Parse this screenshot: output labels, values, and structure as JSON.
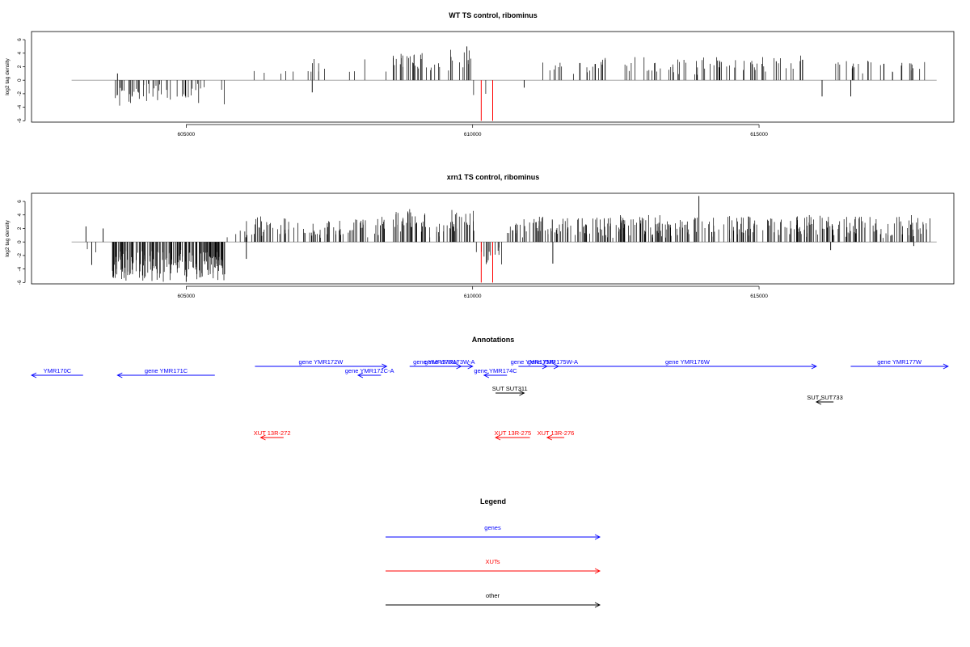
{
  "chart_data": [
    {
      "type": "bar",
      "title": "WT TS control, ribominus",
      "ylabel": "log2 tag density",
      "xlim": [
        602300,
        618400
      ],
      "ylim": [
        -6.2,
        7.2
      ],
      "yticks": [
        -6,
        -4,
        -2,
        0,
        2,
        4,
        6
      ],
      "xticks": [
        605000,
        610000,
        615000
      ],
      "baseline_from": 603000,
      "baseline_to": 618100,
      "seed": 11,
      "segments": [
        {
          "from": 603700,
          "to": 605700,
          "density": 2.4,
          "min": -3.5,
          "max": -0.5,
          "jitter": 0.6
        },
        {
          "from": 606100,
          "to": 607100,
          "density": 0.45,
          "min": 0.6,
          "max": 1.6,
          "jitter": 0.3
        },
        {
          "from": 607100,
          "to": 608500,
          "density": 0.8,
          "min": 1.0,
          "max": 3.0,
          "jitter": 0.5
        },
        {
          "from": 608600,
          "to": 609150,
          "density": 4.0,
          "min": 1.5,
          "max": 4.2,
          "jitter": 0.6
        },
        {
          "from": 609150,
          "to": 609600,
          "density": 1.6,
          "min": 0.8,
          "max": 2.6,
          "jitter": 0.5
        },
        {
          "from": 609600,
          "to": 610000,
          "density": 2.8,
          "min": 1.8,
          "max": 4.5,
          "jitter": 0.6
        },
        {
          "from": 610000,
          "to": 610300,
          "density": 0.5,
          "min": -2.5,
          "max": -0.5,
          "jitter": 0.4
        },
        {
          "from": 611200,
          "to": 612000,
          "density": 1.4,
          "min": 1.0,
          "max": 3.0,
          "jitter": 0.5
        },
        {
          "from": 612000,
          "to": 615800,
          "density": 2.0,
          "min": 0.8,
          "max": 3.4,
          "jitter": 0.6
        },
        {
          "from": 616300,
          "to": 618000,
          "density": 1.6,
          "min": 0.8,
          "max": 3.0,
          "jitter": 0.5
        }
      ],
      "points": [
        {
          "x": 603800,
          "y": 1.0
        },
        {
          "x": 607200,
          "y": -1.8
        },
        {
          "x": 609900,
          "y": 5.0
        },
        {
          "x": 610900,
          "y": -1.1
        },
        {
          "x": 616100,
          "y": -2.4
        },
        {
          "x": 616600,
          "y": -2.4
        },
        {
          "x": 615300,
          "y": 2.8
        }
      ],
      "highlights": [
        {
          "x": 610150,
          "y": -6.0,
          "color": "#ff0000"
        },
        {
          "x": 610350,
          "y": -6.0,
          "color": "#ff0000"
        }
      ]
    },
    {
      "type": "bar",
      "title": "xrn1 TS control, ribominus",
      "ylabel": "log2 tag density",
      "xlim": [
        602300,
        618400
      ],
      "ylim": [
        -6.2,
        7.2
      ],
      "yticks": [
        -6,
        -4,
        -2,
        0,
        2,
        4,
        6
      ],
      "xticks": [
        605000,
        610000,
        615000
      ],
      "baseline_from": 603000,
      "baseline_to": 618100,
      "seed": 29,
      "segments": [
        {
          "from": 603200,
          "to": 603500,
          "density": 0.6,
          "min": -2.6,
          "max": -1.0,
          "jitter": 0.4
        },
        {
          "from": 603700,
          "to": 605700,
          "density": 9.0,
          "min": -5.5,
          "max": -1.5,
          "jitter": 0.9
        },
        {
          "from": 605700,
          "to": 606000,
          "density": 1.0,
          "min": 0.5,
          "max": 2.0,
          "jitter": 0.4
        },
        {
          "from": 606000,
          "to": 608600,
          "density": 3.5,
          "min": 0.8,
          "max": 3.6,
          "jitter": 0.7
        },
        {
          "from": 608600,
          "to": 609200,
          "density": 6.0,
          "min": 1.5,
          "max": 4.8,
          "jitter": 0.7
        },
        {
          "from": 609200,
          "to": 609600,
          "density": 2.5,
          "min": 0.8,
          "max": 3.0,
          "jitter": 0.6
        },
        {
          "from": 609600,
          "to": 610050,
          "density": 5.0,
          "min": 1.8,
          "max": 5.0,
          "jitter": 0.7
        },
        {
          "from": 610050,
          "to": 610550,
          "density": 2.5,
          "min": -3.2,
          "max": -0.8,
          "jitter": 0.6
        },
        {
          "from": 610550,
          "to": 618000,
          "density": 4.5,
          "min": 0.8,
          "max": 3.8,
          "jitter": 0.8
        }
      ],
      "points": [
        {
          "x": 603250,
          "y": 2.3
        },
        {
          "x": 603550,
          "y": 2.0
        },
        {
          "x": 603350,
          "y": -3.4
        },
        {
          "x": 606050,
          "y": -2.5
        },
        {
          "x": 611400,
          "y": -3.2
        },
        {
          "x": 613950,
          "y": 6.8
        },
        {
          "x": 616250,
          "y": -1.2
        },
        {
          "x": 617700,
          "y": -0.6
        },
        {
          "x": 605000,
          "y": -5.9
        }
      ],
      "highlights": [
        {
          "x": 610150,
          "y": -6.0,
          "color": "#ff0000"
        },
        {
          "x": 610350,
          "y": -6.0,
          "color": "#ff0000"
        }
      ]
    }
  ],
  "annotations": {
    "title": "Annotations",
    "xlim": [
      602300,
      618400
    ],
    "features": [
      {
        "label": "YMR170C",
        "start": 602300,
        "end": 603200,
        "row": 0,
        "strand": "-",
        "color": "#0000ff"
      },
      {
        "label": "gene YMR171C",
        "start": 603800,
        "end": 605500,
        "row": 0,
        "strand": "-",
        "color": "#0000ff"
      },
      {
        "label": "gene YMR172W",
        "start": 606200,
        "end": 608500,
        "row": -1,
        "strand": "+",
        "color": "#0000ff"
      },
      {
        "label": "gene YMR172C-A",
        "start": 608000,
        "end": 608400,
        "row": 0,
        "strand": "-",
        "color": "#0000ff"
      },
      {
        "label": "gene YMR173W",
        "start": 608900,
        "end": 609800,
        "row": -1,
        "strand": "+",
        "color": "#0000ff"
      },
      {
        "label": "gene YMR173W-A",
        "start": 609200,
        "end": 610000,
        "row": -1,
        "strand": "+",
        "color": "#0000ff"
      },
      {
        "label": "gene YMR174C",
        "start": 610200,
        "end": 610600,
        "row": 0,
        "strand": "-",
        "color": "#0000ff"
      },
      {
        "label": "gene YMR175W",
        "start": 610800,
        "end": 611300,
        "row": -1,
        "strand": "+",
        "color": "#0000ff"
      },
      {
        "label": "gene YMR175W-A",
        "start": 611300,
        "end": 611500,
        "row": -1,
        "strand": "+",
        "color": "#0000ff"
      },
      {
        "label": "gene YMR176W",
        "start": 611500,
        "end": 616000,
        "row": -1,
        "strand": "+",
        "color": "#0000ff"
      },
      {
        "label": "gene YMR177W",
        "start": 616600,
        "end": 618300,
        "row": -1,
        "strand": "+",
        "color": "#0000ff"
      },
      {
        "label": "SUT SUT311",
        "start": 610400,
        "end": 610900,
        "row": 2,
        "strand": "+",
        "color": "#000000"
      },
      {
        "label": "SUT SUT733",
        "start": 616000,
        "end": 616300,
        "row": 3,
        "strand": "-",
        "color": "#000000"
      },
      {
        "label": "XUT 13R-272",
        "start": 606300,
        "end": 606700,
        "row": 7,
        "strand": "-",
        "color": "#ff0000"
      },
      {
        "label": "XUT 13R-275",
        "start": 610400,
        "end": 611000,
        "row": 7,
        "strand": "-",
        "color": "#ff0000"
      },
      {
        "label": "XUT 13R-276",
        "start": 611300,
        "end": 611600,
        "row": 7,
        "strand": "-",
        "color": "#ff0000"
      }
    ]
  },
  "legend": {
    "title": "Legend",
    "items": [
      {
        "label": "genes",
        "color": "#0000ff"
      },
      {
        "label": "XUTs",
        "color": "#ff0000"
      },
      {
        "label": "other",
        "color": "#000000"
      }
    ]
  }
}
